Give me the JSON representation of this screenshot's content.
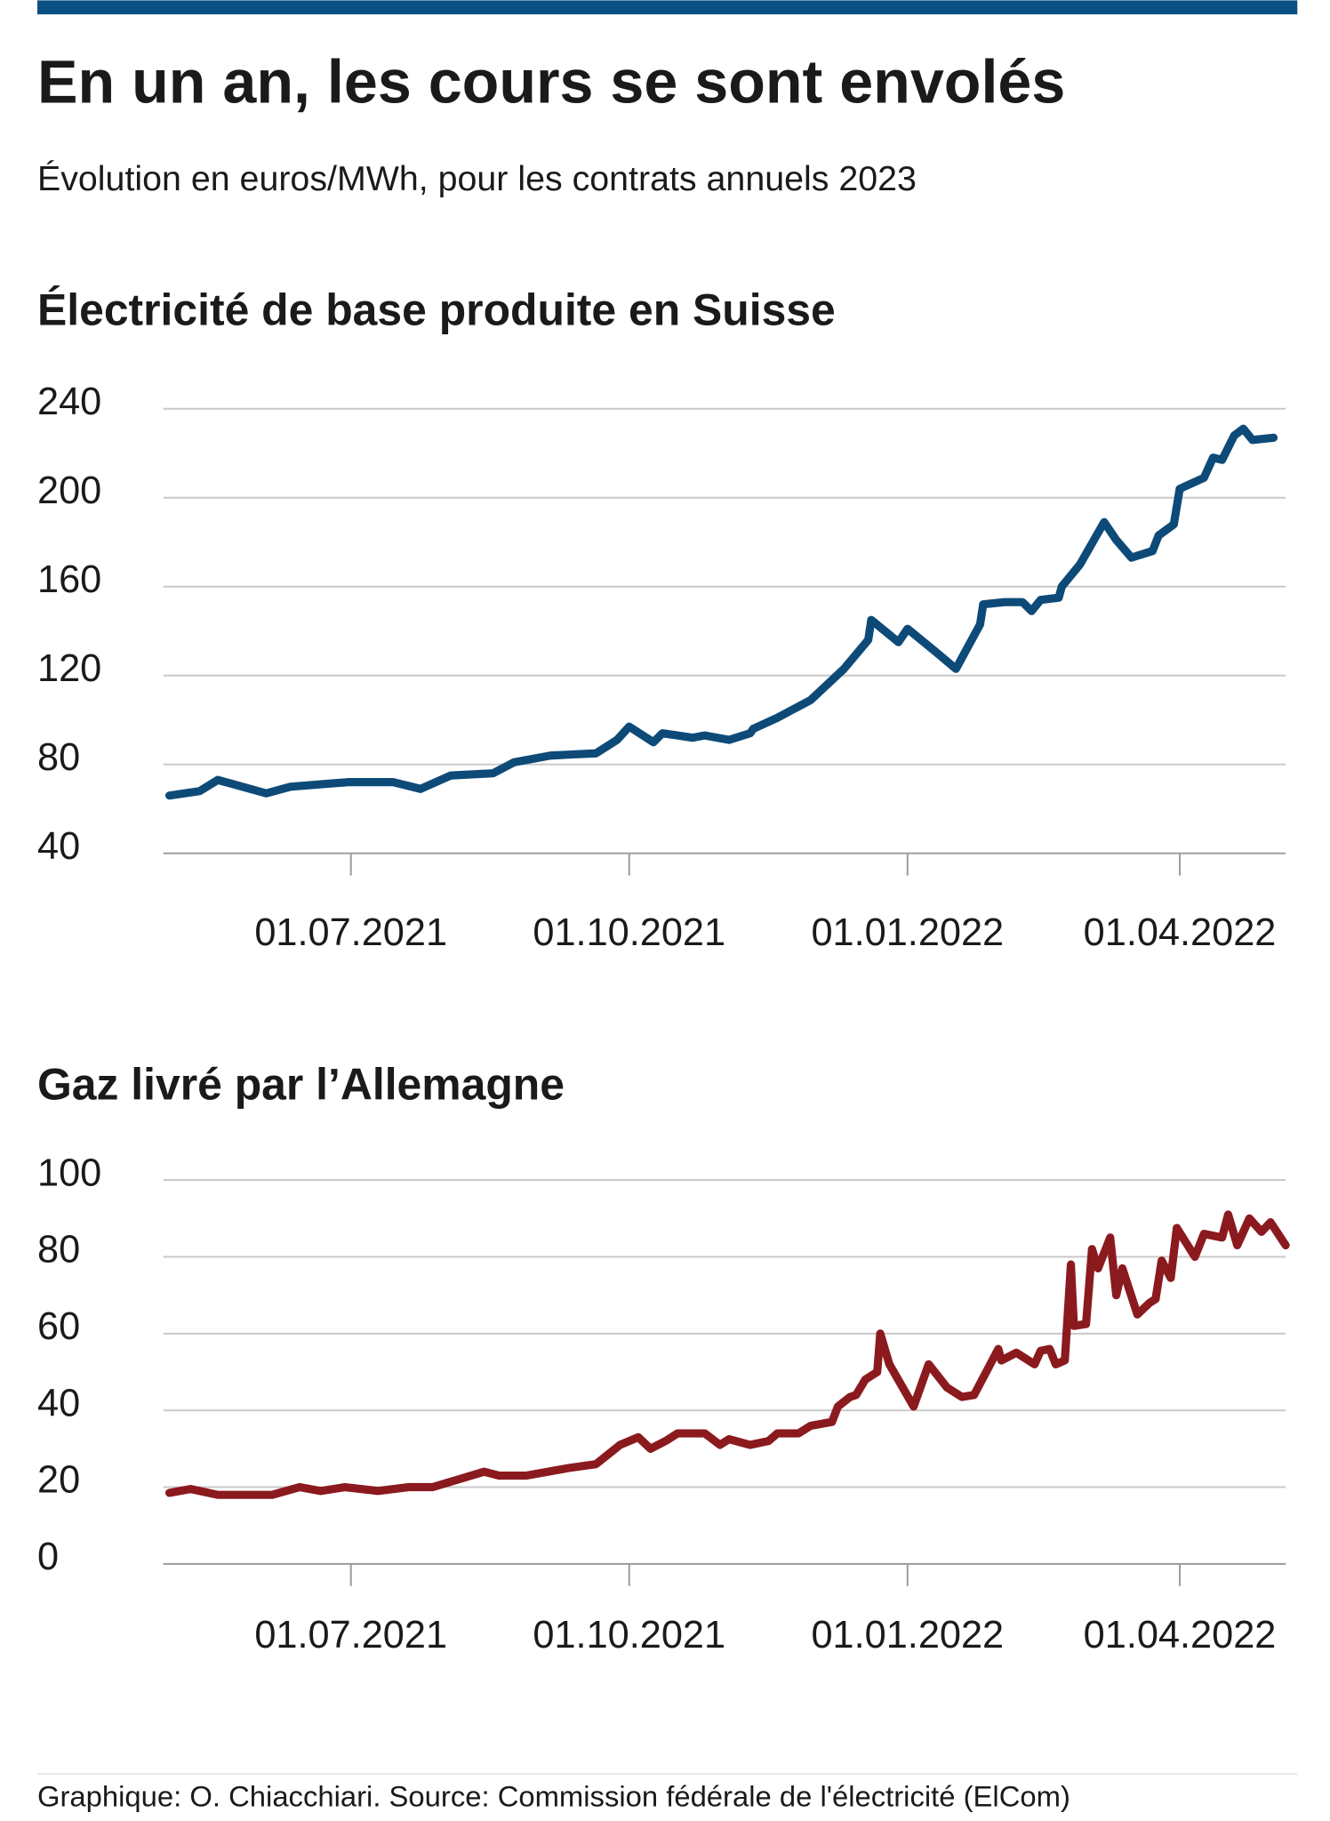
{
  "header": {
    "title": "En un an, les cours se sont envolés",
    "subtitle": "Évolution en euros/MWh, pour les contrats annuels 2023"
  },
  "source": "Graphique: O. Chiacchiari. Source: Commission fédérale de l'électricité (ElCom)",
  "chart_data": [
    {
      "type": "line",
      "title": "Électricité de base produite en Suisse",
      "color": "#0d4a78",
      "grid": true,
      "xlim": [
        "30.04.2021",
        "06.05.2022"
      ],
      "xticks": [
        "01.07.2021",
        "01.10.2021",
        "01.01.2022",
        "01.04.2022"
      ],
      "ylim": [
        40,
        240
      ],
      "yticks": [
        40,
        80,
        120,
        160,
        200,
        240
      ],
      "x": [
        "02.05.2021",
        "12.05.2021",
        "18.05.2021",
        "03.06.2021",
        "11.06.2021",
        "30.06.2021",
        "15.07.2021",
        "24.07.2021",
        "03.08.2021",
        "17.08.2021",
        "24.08.2021",
        "05.09.2021",
        "20.09.2021",
        "27.09.2021",
        "01.10.2021",
        "09.10.2021",
        "12.10.2021",
        "22.10.2021",
        "26.10.2021",
        "03.11.2021",
        "10.11.2021",
        "11.11.2021",
        "19.11.2021",
        "30.11.2021",
        "11.12.2021",
        "19.12.2021",
        "20.12.2021",
        "29.12.2021",
        "01.01.2022",
        "10.01.2022",
        "17.01.2022",
        "25.01.2022",
        "26.01.2022",
        "02.02.2022",
        "08.02.2022",
        "11.02.2022",
        "14.02.2022",
        "20.02.2022",
        "21.02.2022",
        "27.02.2022",
        "07.03.2022",
        "11.03.2022",
        "16.03.2022",
        "23.03.2022",
        "25.03.2022",
        "30.03.2022",
        "01.04.2022",
        "09.04.2022",
        "12.04.2022",
        "15.04.2022",
        "19.04.2022",
        "22.04.2022",
        "25.04.2022",
        "02.05.2022"
      ],
      "values": [
        66,
        68,
        73,
        67,
        70,
        72,
        72,
        69,
        75,
        76,
        81,
        84,
        85,
        91,
        97,
        90,
        94,
        92,
        93,
        91,
        94,
        96,
        101,
        109,
        123,
        136,
        145,
        135,
        141,
        131,
        123,
        143,
        152,
        153,
        153,
        149,
        154,
        155,
        160,
        170,
        189,
        181,
        173,
        176,
        183,
        188,
        204,
        209,
        218,
        217,
        228,
        231,
        226,
        227
      ]
    },
    {
      "type": "line",
      "title": "Gaz livré par l’Allemagne",
      "color": "#8b1a1e",
      "grid": true,
      "xlim": [
        "30.04.2021",
        "06.05.2022"
      ],
      "xticks": [
        "01.07.2021",
        "01.10.2021",
        "01.01.2022",
        "01.04.2022"
      ],
      "ylim": [
        0,
        100
      ],
      "yticks": [
        0,
        20,
        40,
        60,
        80,
        100
      ],
      "x": [
        "02.05.2021",
        "09.05.2021",
        "18.05.2021",
        "05.06.2021",
        "14.06.2021",
        "21.06.2021",
        "29.06.2021",
        "10.07.2021",
        "20.07.2021",
        "28.07.2021",
        "14.08.2021",
        "19.08.2021",
        "28.08.2021",
        "11.09.2021",
        "20.09.2021",
        "28.09.2021",
        "04.10.2021",
        "08.10.2021",
        "13.10.2021",
        "17.10.2021",
        "26.10.2021",
        "31.10.2021",
        "03.11.2021",
        "10.11.2021",
        "16.11.2021",
        "19.11.2021",
        "26.11.2021",
        "30.11.2021",
        "07.12.2021",
        "09.12.2021",
        "13.12.2021",
        "15.12.2021",
        "18.12.2021",
        "22.12.2021",
        "23.12.2021",
        "26.12.2021",
        "03.01.2022",
        "08.01.2022",
        "14.01.2022",
        "19.01.2022",
        "23.01.2022",
        "31.01.2022",
        "01.02.2022",
        "06.02.2022",
        "12.02.2022",
        "14.02.2022",
        "17.02.2022",
        "19.02.2022",
        "22.02.2022",
        "24.02.2022",
        "25.02.2022",
        "01.03.2022",
        "03.03.2022",
        "05.03.2022",
        "09.03.2022",
        "11.03.2022",
        "13.03.2022",
        "18.03.2022",
        "22.03.2022",
        "24.03.2022",
        "26.03.2022",
        "29.03.2022",
        "31.03.2022",
        "06.04.2022",
        "09.04.2022",
        "15.04.2022",
        "17.04.2022",
        "20.04.2022",
        "24.04.2022",
        "28.04.2022",
        "01.05.2022",
        "06.05.2022"
      ],
      "values": [
        18.5,
        19.5,
        18,
        18,
        20,
        19,
        20,
        19,
        20,
        20,
        24,
        23,
        23,
        25,
        26,
        31,
        33,
        30,
        32,
        34,
        34,
        31,
        32.5,
        31,
        32,
        34,
        34,
        36,
        37,
        41,
        43.5,
        44,
        48,
        50,
        60,
        52,
        41,
        52,
        46,
        43.5,
        44,
        56,
        53,
        55,
        52,
        55.5,
        56,
        52,
        53,
        78,
        62,
        62.5,
        82,
        77,
        85,
        70,
        77,
        65,
        68,
        69,
        79,
        74.5,
        87.5,
        80,
        86,
        85,
        91,
        83,
        90,
        86.5,
        89,
        83
      ]
    }
  ]
}
